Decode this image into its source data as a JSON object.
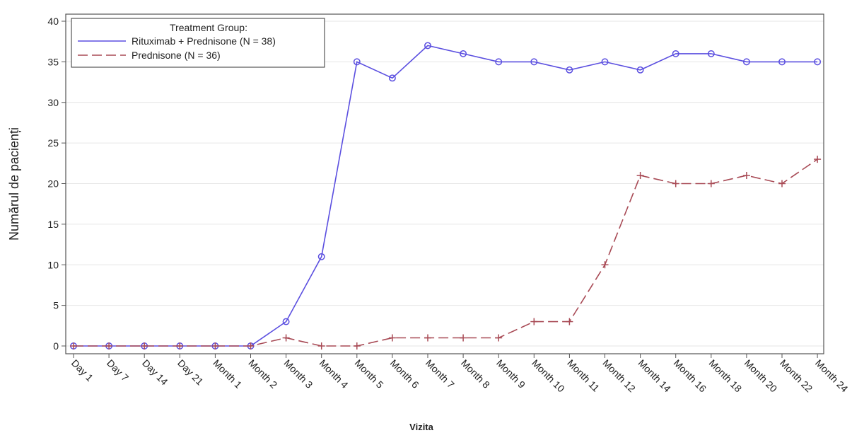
{
  "chart_data": {
    "type": "line",
    "title": "",
    "xlabel": "Vizita",
    "ylabel": "Numărul de pacienți",
    "ylim": [
      0,
      40
    ],
    "yticks": [
      0,
      5,
      10,
      15,
      20,
      25,
      30,
      35,
      40
    ],
    "grid": true,
    "legend": {
      "title": "Treatment Group:",
      "placement": "top-left"
    },
    "categories": [
      "Day 1",
      "Day 7",
      "Day 14",
      "Day 21",
      "Month 1",
      "Month 2",
      "Month 3",
      "Month 4",
      "Month 5",
      "Month 6",
      "Month 7",
      "Month 8",
      "Month 9",
      "Month 10",
      "Month 11",
      "Month 12",
      "Month 14",
      "Month 16",
      "Month 18",
      "Month 20",
      "Month 22",
      "Month 24"
    ],
    "series": [
      {
        "name": "Rituximab + Prednisone (N = 38)",
        "color": "#5b4fe0",
        "line_style": "solid",
        "marker": "circle",
        "values": [
          0,
          0,
          0,
          0,
          0,
          0,
          3,
          11,
          35,
          33,
          37,
          36,
          35,
          35,
          34,
          35,
          34,
          36,
          36,
          35,
          35,
          35
        ]
      },
      {
        "name": "Prednisone (N = 36)",
        "color": "#a84a55",
        "line_style": "dashed",
        "marker": "plus",
        "values": [
          0,
          0,
          0,
          0,
          0,
          0,
          1,
          0,
          0,
          1,
          1,
          1,
          1,
          3,
          3,
          10,
          21,
          20,
          20,
          21,
          20,
          23
        ]
      }
    ]
  }
}
